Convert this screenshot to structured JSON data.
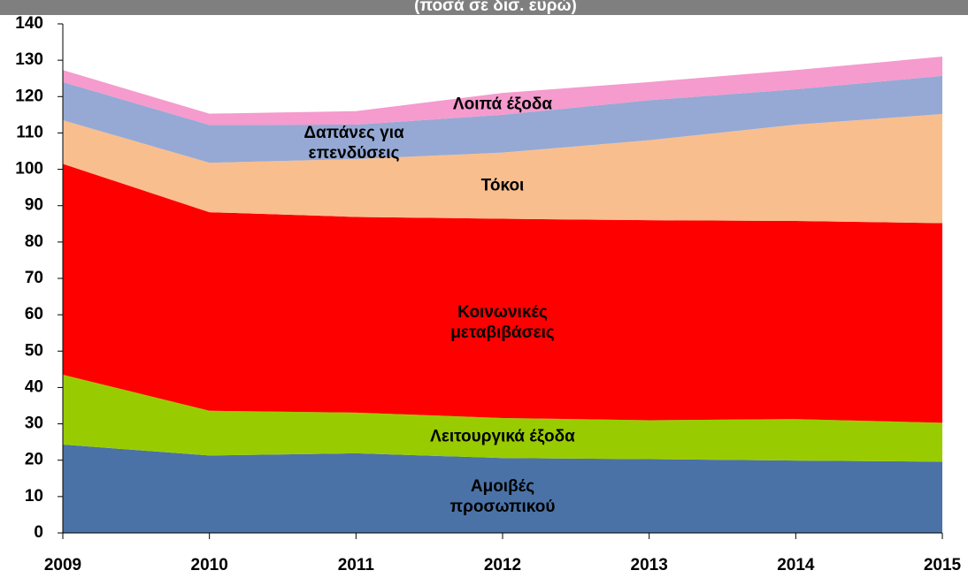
{
  "chart_data": {
    "type": "stacked_area",
    "subtitle": "(ποσά σε δισ. ευρώ)",
    "categories": [
      "2009",
      "2010",
      "2011",
      "2012",
      "2013",
      "2014",
      "2015"
    ],
    "series": [
      {
        "name": "Αμοιβές προσωπικού",
        "color": "#4a72a6",
        "values": [
          24.3,
          21.3,
          21.9,
          20.6,
          20.3,
          19.9,
          19.6
        ]
      },
      {
        "name": "Λειτουργικά έξοδα",
        "color": "#99cc00",
        "values": [
          19.2,
          12.3,
          11.2,
          11,
          10.7,
          11.4,
          10.7
        ]
      },
      {
        "name": "Κοινωνικές μεταβιβάσεις",
        "color": "#ff0000",
        "values": [
          58,
          54.6,
          53.8,
          54.8,
          55,
          54.5,
          54.9
        ]
      },
      {
        "name": "Τόκοι",
        "color": "#f9be8e",
        "values": [
          12,
          13.6,
          15.9,
          18.2,
          22,
          26.5,
          30
        ]
      },
      {
        "name": "Δαπάνες για επενδύσεις",
        "color": "#95a9d4",
        "values": [
          10.5,
          10.4,
          9.5,
          10.4,
          11,
          9.7,
          10.5
        ]
      },
      {
        "name": "Λοιπά έξοδα",
        "color": "#f59bcd",
        "values": [
          3.3,
          3.1,
          3.7,
          6,
          5,
          5.3,
          5.3
        ]
      }
    ],
    "ylim": [
      0,
      140
    ],
    "yticks": [
      0,
      10,
      20,
      30,
      40,
      50,
      60,
      70,
      80,
      90,
      100,
      110,
      120,
      130,
      140
    ]
  }
}
